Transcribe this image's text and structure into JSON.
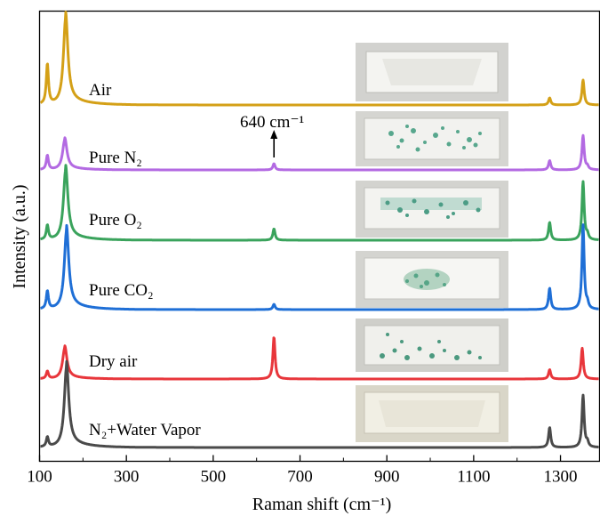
{
  "chart_data": {
    "type": "line",
    "xlabel": "Raman shift (cm⁻¹)",
    "ylabel": "Intensity (a.u.)",
    "xlim": [
      100,
      1390
    ],
    "x_ticks": [
      "100",
      "300",
      "500",
      "700",
      "900",
      "1100",
      "1300"
    ],
    "grid": false,
    "legend": "none",
    "annotation": {
      "text": "640 cm⁻¹",
      "x": 640,
      "arrow": "up"
    },
    "series": [
      {
        "name": "Air",
        "color": "#d4a017",
        "peaks": [
          [
            118,
            0.45
          ],
          [
            160,
            0.97
          ],
          [
            640,
            0.0
          ],
          [
            1275,
            0.08
          ],
          [
            1352,
            0.28
          ]
        ]
      },
      {
        "name": "Pure N₂",
        "color": "#b36ae2",
        "peaks": [
          [
            118,
            0.23
          ],
          [
            158,
            0.48
          ],
          [
            640,
            0.1
          ],
          [
            1275,
            0.15
          ],
          [
            1352,
            0.55
          ],
          [
            1362,
            0.05
          ]
        ]
      },
      {
        "name": "Pure O₂",
        "color": "#3aa35c",
        "peaks": [
          [
            118,
            0.2
          ],
          [
            160,
            0.98
          ],
          [
            640,
            0.16
          ],
          [
            1275,
            0.25
          ],
          [
            1352,
            0.82
          ],
          [
            1362,
            0.07
          ]
        ]
      },
      {
        "name": "Pure CO₂",
        "color": "#1f6fd6",
        "peaks": [
          [
            118,
            0.2
          ],
          [
            162,
            0.88
          ],
          [
            640,
            0.06
          ],
          [
            1275,
            0.24
          ],
          [
            1352,
            0.95
          ],
          [
            1362,
            0.06
          ]
        ]
      },
      {
        "name": "Dry air",
        "color": "#e8363b",
        "peaks": [
          [
            118,
            0.08
          ],
          [
            158,
            0.33
          ],
          [
            640,
            0.45
          ],
          [
            1275,
            0.1
          ],
          [
            1350,
            0.33
          ]
        ]
      },
      {
        "name": "N₂+Water Vapor",
        "color": "#4a4a4a",
        "peaks": [
          [
            118,
            0.12
          ],
          [
            162,
            1.0
          ],
          [
            1275,
            0.25
          ],
          [
            1352,
            0.65
          ],
          [
            1362,
            0.06
          ]
        ]
      }
    ]
  }
}
